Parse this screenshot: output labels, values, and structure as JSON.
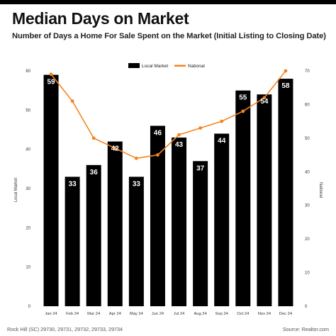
{
  "header": {
    "title": "Median Days on Market",
    "subtitle": "Number of Days a Home For Sale Spent on the Market (Initial Listing to Closing Date)"
  },
  "footer": {
    "location": "Rock Hill (SC) 29730, 29731, 29732, 29733, 29734",
    "source": "Source: Realtor.com"
  },
  "colors": {
    "bar": "#000000",
    "line": "#F5841F",
    "bar_label": "#ffffff"
  },
  "chart_data": {
    "type": "bar",
    "title": "Median Days on Market",
    "categories": [
      "Jan 24",
      "Feb 24",
      "Mar 24",
      "Apr 24",
      "May 24",
      "Jun 24",
      "Jul 24",
      "Aug 24",
      "Sep 24",
      "Oct 24",
      "Nov 24",
      "Dec 24"
    ],
    "series": [
      {
        "name": "Local Market",
        "type": "bar",
        "axis": "left",
        "values": [
          59,
          33,
          36,
          42,
          33,
          46,
          43,
          37,
          44,
          55,
          54,
          58
        ]
      },
      {
        "name": "National",
        "type": "line",
        "axis": "right",
        "values": [
          69,
          61,
          50,
          47,
          44,
          45,
          51,
          53,
          55,
          58,
          62,
          70
        ]
      }
    ],
    "y_left": {
      "label": "Local Market",
      "min": 0,
      "max": 60,
      "ticks": [
        0,
        10,
        20,
        30,
        40,
        50,
        60
      ]
    },
    "y_right": {
      "label": "National",
      "min": 0,
      "max": 70,
      "ticks": [
        0,
        10,
        20,
        30,
        40,
        50,
        60,
        70
      ]
    },
    "legend": "top-center",
    "grid": false
  }
}
